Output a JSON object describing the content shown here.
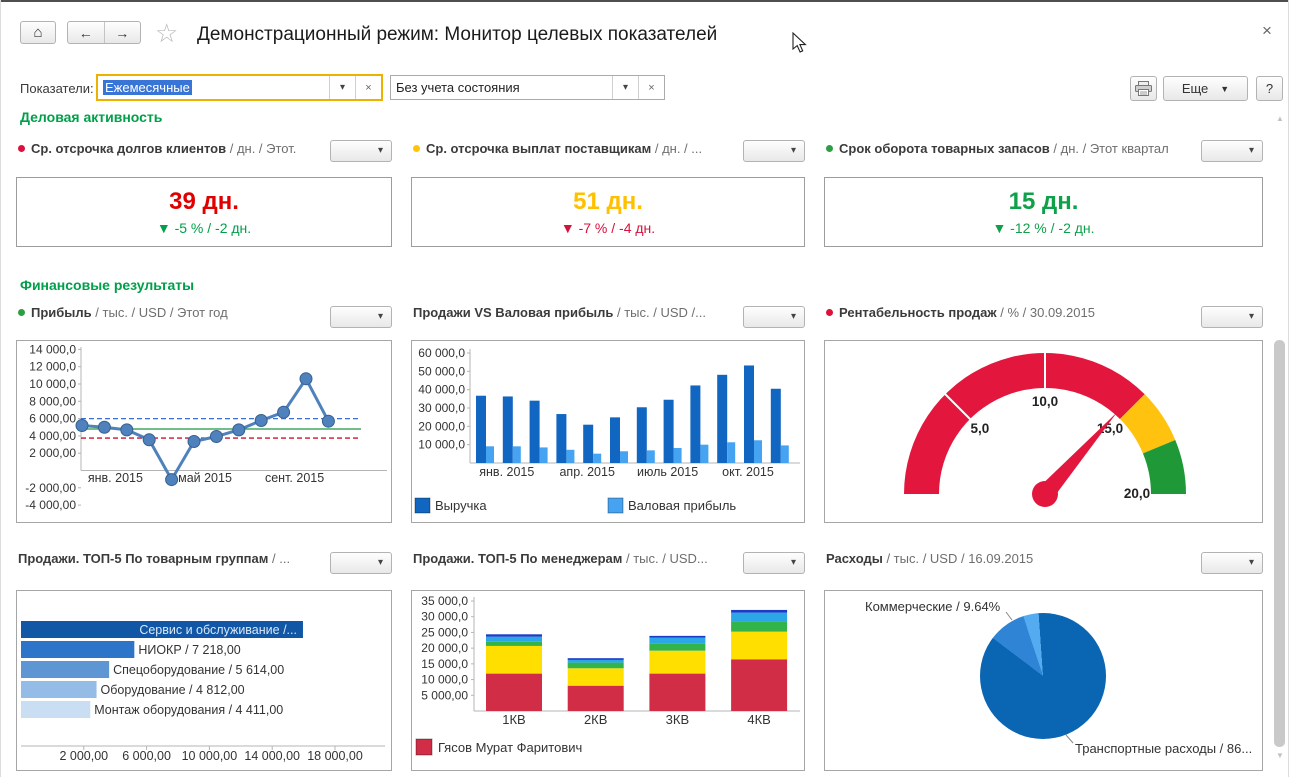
{
  "window": {
    "title": "Демонстрационный режим: Монитор целевых показателей"
  },
  "icons": {
    "home": "⌂",
    "back": "←",
    "forward": "→",
    "star": "☆",
    "close": "×",
    "dropdown_arrow": "▾",
    "combo_clear": "×",
    "more_arrow": "▼",
    "scroll_up": "▲",
    "scroll_down": "▼"
  },
  "filterbar": {
    "label": "Показатели:",
    "period_value": "Ежемесячные",
    "state_value": "Без учета состояния"
  },
  "actions": {
    "more": "Еще",
    "help": "?"
  },
  "sections": {
    "business": "Деловая активность",
    "financial": "Финансовые результаты"
  },
  "kpis": [
    {
      "bullet_color": "#e0103c",
      "name": "Ср. отсрочка долгов клиентов",
      "suffix": "/ дн. / Этот.",
      "value": "39 дн.",
      "value_color": "#df0000",
      "delta": "▼ -5 % / -2 дн.",
      "delta_color": "#00A04A"
    },
    {
      "bullet_color": "#ffc20e",
      "name": "Ср. отсрочка выплат поставщикам",
      "suffix": "/ дн. / ...",
      "value": "51 дн.",
      "value_color": "#ffc000",
      "delta": "▼ -7 % / -4 дн.",
      "delta_color": "#d8103c"
    },
    {
      "bullet_color": "#2e9e44",
      "name": "Срок оборота товарных запасов",
      "suffix": "/ дн. / Этот квартал",
      "value": "15 дн.",
      "value_color": "#0fa04a",
      "delta": "▼ -12 % / -2 дн.",
      "delta_color": "#0fa04a"
    }
  ],
  "chart_data": [
    {
      "id": "profit_line",
      "type": "line",
      "bullet_color": "#2e9e44",
      "title": "Прибыль",
      "title_suffix": "/ тыс. / USD / Этот год",
      "values": [
        5200,
        5000,
        4700,
        3550,
        -1050,
        3350,
        3930,
        4700,
        5780,
        6740,
        10600,
        5700
      ],
      "xticks": [
        {
          "index": 1,
          "label": "янв. 2015"
        },
        {
          "index": 5,
          "label": "май 2015"
        },
        {
          "index": 9,
          "label": "сент. 2015"
        }
      ],
      "ytick_values": [
        14000,
        12000,
        10000,
        8000,
        6000,
        4000,
        2000,
        -2000,
        -4000
      ],
      "ytick_labels": [
        "14 000,0",
        "12 000,0",
        "10 000,0",
        "8 000,00",
        "6 000,00",
        "4 000,00",
        "2 000,00",
        "-2 000,00",
        "-4 000,00"
      ],
      "ylim": [
        -4000,
        14000
      ],
      "line_color": "#4f81bd",
      "ref_lines": [
        {
          "value": 6000,
          "color": "#3b6fd4",
          "dash": true
        },
        {
          "value": 4800,
          "color": "#1e9640",
          "dash": false
        },
        {
          "value": 3750,
          "color": "#d01030",
          "dash": true
        }
      ]
    },
    {
      "id": "sales_vs_gross_profit",
      "type": "bar",
      "title": "Продажи VS Валовая прибыль",
      "title_suffix": "/ тыс. / USD /...",
      "series": [
        {
          "name": "Выручка",
          "color": "#1066c0",
          "values": [
            36700,
            36300,
            34000,
            26700,
            20900,
            24900,
            30400,
            34500,
            42300,
            48100,
            53200,
            40500
          ]
        },
        {
          "name": "Валовая прибыль",
          "color": "#46a3f2",
          "values": [
            9100,
            9100,
            8500,
            7200,
            5100,
            6400,
            6900,
            8200,
            10000,
            11300,
            12400,
            9600
          ]
        }
      ],
      "xticks": [
        {
          "index": 1,
          "label": "янв. 2015"
        },
        {
          "index": 4,
          "label": "апр. 2015"
        },
        {
          "index": 7,
          "label": "июль 2015"
        },
        {
          "index": 10,
          "label": "окт. 2015"
        }
      ],
      "ytick_values": [
        60000,
        50000,
        40000,
        30000,
        20000,
        10000
      ],
      "ytick_labels": [
        "60 000,0",
        "50 000,0",
        "40 000,0",
        "30 000,0",
        "20 000,0",
        "10 000,0"
      ],
      "ylim": [
        0,
        60000
      ]
    },
    {
      "id": "profitability_gauge",
      "type": "gauge",
      "bullet_color": "#e0103c",
      "title": "Рентабельность продаж",
      "title_suffix": "/ % / 30.09.2015",
      "min": 0,
      "max": 20,
      "value": 14.6,
      "needle_color": "#e3173d",
      "zones": [
        {
          "from": 0,
          "to": 15,
          "color": "#e3173d"
        },
        {
          "from": 15,
          "to": 17.5,
          "color": "#ffc20e"
        },
        {
          "from": 17.5,
          "to": 20,
          "color": "#1f9838"
        }
      ],
      "tick_marks": [
        5,
        10
      ],
      "tick_labels": [
        {
          "value": 5,
          "label": "5,0"
        },
        {
          "value": 10,
          "label": "10,0"
        },
        {
          "value": 15,
          "label": "15,0"
        },
        {
          "value": 20,
          "label": "20,0"
        }
      ]
    },
    {
      "id": "top5_product_groups",
      "type": "hbar",
      "title": "Продажи. ТОП-5 По товарным группам",
      "title_suffix": "/ ...",
      "bars": [
        {
          "label": "Сервис и обслуживание /...",
          "value": 17960,
          "color": "#1157a6",
          "label_inside": true
        },
        {
          "label": "НИОКР / 7 218,00",
          "value": 7218,
          "color": "#2e74c8"
        },
        {
          "label": "Спецоборудование / 5 614,00",
          "value": 5614,
          "color": "#5e96d4"
        },
        {
          "label": "Оборудование / 4 812,00",
          "value": 4812,
          "color": "#94bce6"
        },
        {
          "label": "Монтаж оборудования / 4 411,00",
          "value": 4411,
          "color": "#c9def2"
        }
      ],
      "xtick_values": [
        2000,
        6000,
        10000,
        14000,
        18000
      ],
      "xtick_labels": [
        "2 000,00",
        "6 000,00",
        "10 000,00",
        "14 000,00",
        "18 000,00"
      ],
      "xlim": [
        0,
        23000
      ]
    },
    {
      "id": "top5_managers",
      "type": "stacked_bar",
      "title": "Продажи. ТОП-5 По менеджерам",
      "title_suffix": "/ тыс. / USD...",
      "categories": [
        "1КВ",
        "2КВ",
        "3КВ",
        "4КВ"
      ],
      "series": [
        {
          "name": "Гясов Мурат Фаритович",
          "color": "#d22d46",
          "values": [
            11900,
            8050,
            11900,
            16450
          ]
        },
        {
          "name": "",
          "color": "#ffdf00",
          "values": [
            8800,
            5550,
            7300,
            8800
          ]
        },
        {
          "name": "",
          "color": "#33b44a",
          "values": [
            1350,
            1800,
            2350,
            3200
          ]
        },
        {
          "name": "",
          "color": "#2ba7e8",
          "values": [
            1600,
            850,
            1800,
            2850
          ]
        },
        {
          "name": "",
          "color": "#1b3cc8",
          "values": [
            750,
            550,
            550,
            850
          ]
        }
      ],
      "ytick_values": [
        35000,
        30000,
        25000,
        20000,
        15000,
        10000,
        5000
      ],
      "ytick_labels": [
        "35 000,0",
        "30 000,0",
        "25 000,0",
        "20 000,0",
        "15 000,0",
        "10 000,0",
        "5 000,00"
      ],
      "ylim": [
        0,
        36000
      ],
      "legend": [
        {
          "name": "Гясов Мурат Фаритович",
          "color": "#d22d46"
        }
      ]
    },
    {
      "id": "expenses_pie",
      "type": "pie",
      "title": "Расходы",
      "title_suffix": "/ тыс. / USD / 16.09.2015",
      "slices": [
        {
          "label": "Транспортные расходы",
          "pct": 86.4,
          "color": "#0a66b2"
        },
        {
          "label": "Коммерческие",
          "pct": 9.64,
          "color": "#2f84d6"
        },
        {
          "label": "",
          "pct": 3.96,
          "color": "#55abf0"
        }
      ],
      "callouts": [
        {
          "text": "Коммерческие / 9.64%",
          "position": "top-left"
        },
        {
          "text": "Транспортные расходы / 86...",
          "position": "bottom-right"
        }
      ]
    }
  ]
}
